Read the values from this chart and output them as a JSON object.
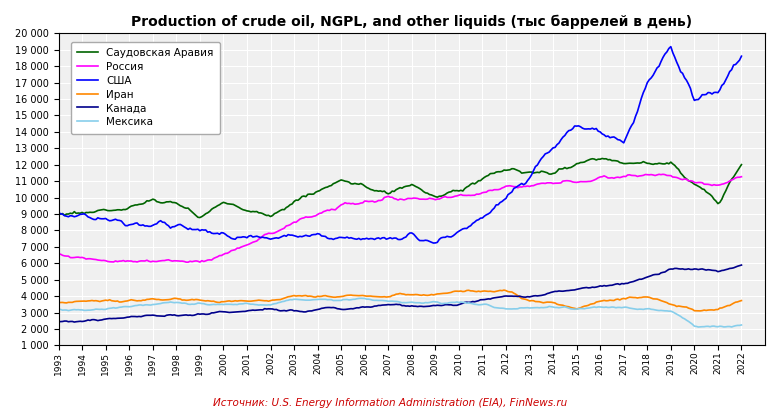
{
  "title": "Production of crude oil, NGPL, and other liquids (тыс баррелей в день)",
  "source": "Источник: U.S. Energy Information Administration (EIA), FinNews.ru",
  "legend": [
    "Саудовская Аравия",
    "Россия",
    "США",
    "Иран",
    "Канада",
    "Мексика"
  ],
  "colors": {
    "saudi": "#006400",
    "russia": "#ff00ff",
    "usa": "#0000ff",
    "iran": "#ff8800",
    "canada": "#00008B",
    "mexico": "#87CEEB"
  },
  "ylim": [
    1000,
    20000
  ],
  "yticks": [
    1000,
    2000,
    3000,
    4000,
    5000,
    6000,
    7000,
    8000,
    9000,
    10000,
    11000,
    12000,
    13000,
    14000,
    15000,
    16000,
    17000,
    18000,
    19000,
    20000
  ],
  "background": "#f0f0f0",
  "years": [
    1993,
    1994,
    1995,
    1996,
    1997,
    1998,
    1999,
    2000,
    2001,
    2002,
    2003,
    2004,
    2005,
    2006,
    2007,
    2008,
    2009,
    2010,
    2011,
    2012,
    2013,
    2014,
    2015,
    2016,
    2017,
    2018,
    2019,
    2020,
    2021,
    2022
  ],
  "saudi": [
    9000,
    9100,
    9200,
    9400,
    9800,
    9600,
    8800,
    9700,
    9200,
    8900,
    9700,
    10400,
    11000,
    10700,
    10200,
    10800,
    9900,
    10500,
    11100,
    11700,
    11600,
    11500,
    12000,
    12400,
    12100,
    12100,
    12000,
    10800,
    9800,
    12000
  ],
  "russia": [
    6600,
    6300,
    6200,
    6100,
    6100,
    6200,
    6100,
    6500,
    7100,
    7800,
    8500,
    9000,
    9500,
    9700,
    9900,
    9900,
    9900,
    10100,
    10300,
    10600,
    10800,
    10900,
    11000,
    11200,
    11300,
    11400,
    11400,
    10900,
    10700,
    11200
  ],
  "usa": [
    9000,
    8900,
    8700,
    8500,
    8400,
    8300,
    7900,
    7800,
    7600,
    7500,
    7700,
    7700,
    7500,
    7500,
    7500,
    7700,
    7300,
    7800,
    8700,
    10000,
    11100,
    13100,
    14300,
    14000,
    13200,
    17000,
    19200,
    16000,
    16500,
    18700
  ],
  "iran": [
    3600,
    3700,
    3700,
    3700,
    3800,
    3800,
    3700,
    3700,
    3700,
    3700,
    4000,
    4000,
    4000,
    4000,
    4000,
    4100,
    4100,
    4300,
    4300,
    4300,
    3700,
    3600,
    3200,
    3700,
    3800,
    3900,
    3500,
    3100,
    3200,
    3700
  ],
  "canada": [
    2400,
    2500,
    2600,
    2700,
    2800,
    2800,
    2900,
    3000,
    3100,
    3200,
    3100,
    3200,
    3200,
    3300,
    3500,
    3400,
    3400,
    3500,
    3800,
    4000,
    4000,
    4200,
    4400,
    4600,
    4800,
    5100,
    5600,
    5700,
    5500,
    5900
  ],
  "mexico": [
    3200,
    3100,
    3200,
    3400,
    3500,
    3600,
    3500,
    3500,
    3500,
    3500,
    3800,
    3800,
    3800,
    3800,
    3700,
    3600,
    3600,
    3600,
    3500,
    3200,
    3300,
    3300,
    3200,
    3300,
    3300,
    3200,
    3100,
    2200,
    2100,
    2200
  ]
}
